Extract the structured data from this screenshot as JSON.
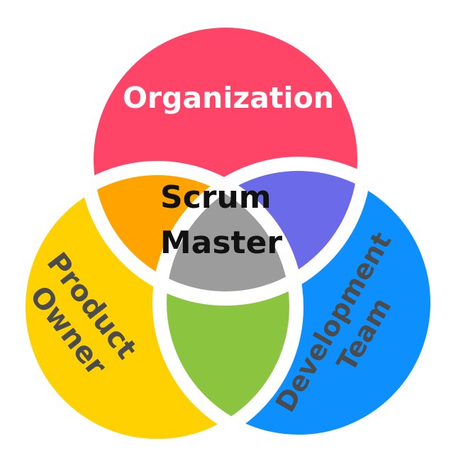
{
  "diagram": {
    "circles": [
      {
        "key": "organization",
        "label": "Organization",
        "color": "#fe4568"
      },
      {
        "key": "product_owner",
        "label_lines": [
          "Product",
          "Owner"
        ],
        "color": "#ffd100"
      },
      {
        "key": "development_team",
        "label_lines": [
          "Development",
          "Team"
        ],
        "color": "#0d90fe"
      }
    ],
    "overlaps": {
      "org_po": "#ffa300",
      "org_dev": "#6b6ae9",
      "po_dev": "#8bc540",
      "center": "#9c9c9c"
    },
    "center_label_lines": [
      "Scrum",
      "Master"
    ],
    "text_colors": {
      "organization": "#ffffff",
      "roles": "#4b4b4b",
      "center": "#111111"
    }
  }
}
